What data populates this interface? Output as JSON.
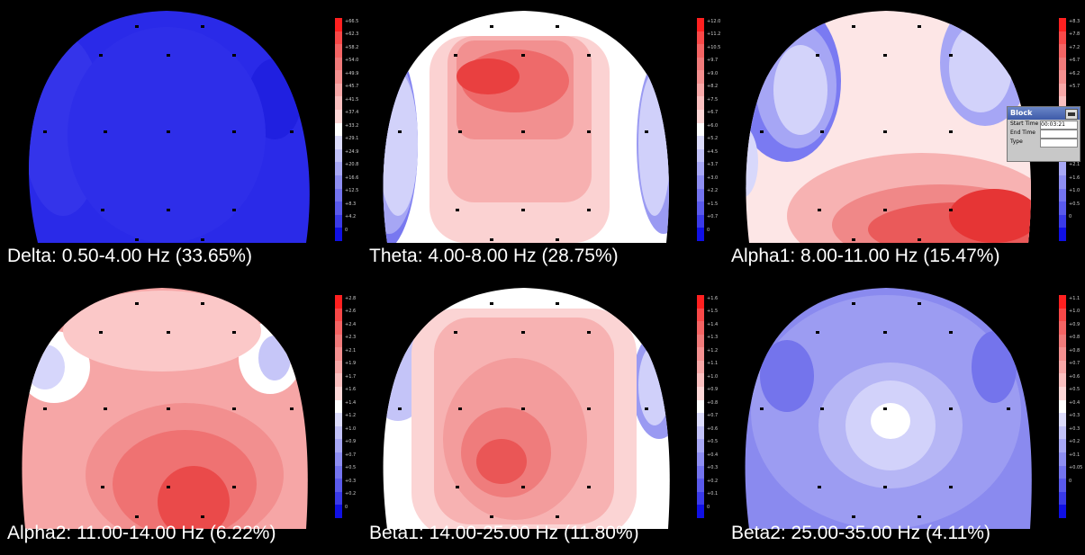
{
  "panels": [
    {
      "caption": "Delta: 0.50-4.00 Hz (33.65%)",
      "scale": [
        "+66.5",
        "+62.3",
        "+58.2",
        "+54.0",
        "+49.9",
        "+45.7",
        "+41.5",
        "+37.4",
        "+33.2",
        "+29.1",
        "+24.9",
        "+20.8",
        "+16.6",
        "+12.5",
        "+8.3",
        "+4.2",
        "0"
      ]
    },
    {
      "caption": "Theta: 4.00-8.00 Hz (28.75%)",
      "scale": [
        "+12.0",
        "+11.2",
        "+10.5",
        "+9.7",
        "+9.0",
        "+8.2",
        "+7.5",
        "+6.7",
        "+6.0",
        "+5.2",
        "+4.5",
        "+3.7",
        "+3.0",
        "+2.2",
        "+1.5",
        "+0.7",
        "0"
      ]
    },
    {
      "caption": "Alpha1: 8.00-11.00 Hz (15.47%)",
      "scale": [
        "+8.3",
        "+7.8",
        "+7.2",
        "+6.7",
        "+6.2",
        "+5.7",
        "",
        "",
        "",
        "",
        "+2.6",
        "+2.1",
        "+1.6",
        "+1.0",
        "+0.5",
        "0",
        ""
      ]
    },
    {
      "caption": "Alpha2: 11.00-14.00 Hz (6.22%)",
      "scale": [
        "+2.8",
        "+2.6",
        "+2.4",
        "+2.3",
        "+2.1",
        "+1.9",
        "+1.7",
        "+1.6",
        "+1.4",
        "+1.2",
        "+1.0",
        "+0.9",
        "+0.7",
        "+0.5",
        "+0.3",
        "+0.2",
        "0"
      ]
    },
    {
      "caption": "Beta1: 14.00-25.00 Hz (11.80%)",
      "scale": [
        "+1.6",
        "+1.5",
        "+1.4",
        "+1.3",
        "+1.2",
        "+1.1",
        "+1.0",
        "+0.9",
        "+0.8",
        "+0.7",
        "+0.6",
        "+0.5",
        "+0.4",
        "+0.3",
        "+0.2",
        "+0.1",
        "0"
      ]
    },
    {
      "caption": "Beta2: 25.00-35.00 Hz (4.11%)",
      "scale": [
        "+1.1",
        "+1.0",
        "+0.9",
        "+0.8",
        "+0.8",
        "+0.7",
        "+0.6",
        "+0.5",
        "+0.4",
        "+0.3",
        "+0.3",
        "+0.2",
        "+0.1",
        "+0.05",
        "0",
        "",
        ""
      ]
    }
  ],
  "dialog": {
    "title": "Block",
    "start_label": "Start Time",
    "start_value": "00:03:21",
    "end_label": "End Time",
    "end_value": "",
    "type_label": "Type",
    "type_value": ""
  },
  "colors": {
    "max": "#e8202a",
    "mid": "#ffffff",
    "min": "#1a1af0",
    "background": "#000000"
  }
}
